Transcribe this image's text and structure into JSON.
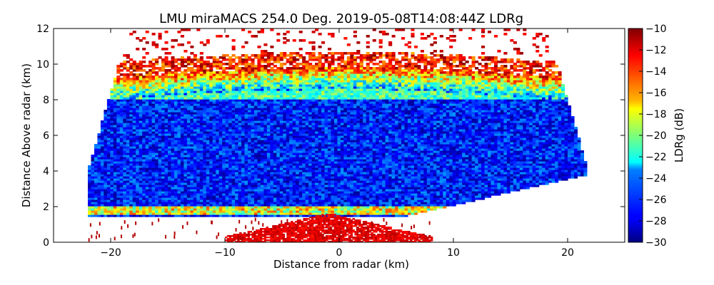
{
  "chart_data": {
    "type": "heatmap",
    "title": "LMU miraMACS 254.0 Deg. 2019-05-08T14:08:44Z  LDRg",
    "xlabel": "Distance from radar (km)",
    "ylabel": "Distance Above radar  (km)",
    "xlim": [
      -25,
      25
    ],
    "ylim": [
      0,
      12
    ],
    "x_ticks": [
      -20,
      -10,
      0,
      10,
      20
    ],
    "y_ticks": [
      0,
      2,
      4,
      6,
      8,
      10,
      12
    ],
    "x_tick_labels": [
      "−20",
      "−10",
      "0",
      "10",
      "20"
    ],
    "y_tick_labels": [
      "0",
      "2",
      "4",
      "6",
      "8",
      "10",
      "12"
    ],
    "colorbar": {
      "label": "LDRg (dB)",
      "range": [
        -30,
        -10
      ],
      "colormap": "jet",
      "ticks": [
        -10,
        -12,
        -14,
        -16,
        -18,
        -20,
        -22,
        -24,
        -26,
        -28,
        -30
      ],
      "tick_labels": [
        "−10",
        "−12",
        "−14",
        "−16",
        "−18",
        "−20",
        "−22",
        "−24",
        "−26",
        "−28",
        "−30"
      ]
    },
    "scan": {
      "left_edge_x_km": -22,
      "right_edge_x_km": 21.8,
      "layers": [
        {
          "name": "melting-layer",
          "height_km": [
            1.6,
            2.0
          ],
          "ldr_db": -18
        },
        {
          "name": "ice-cloud-core",
          "height_km": [
            2.0,
            8.0
          ],
          "ldr_db": -27
        },
        {
          "name": "cloud-top-transition",
          "height_km": [
            8.0,
            9.3
          ],
          "ldr_db": -21
        },
        {
          "name": "cloud-top-noise",
          "height_km": [
            9.3,
            12.0
          ],
          "ldr_db": -11
        }
      ],
      "near_ground_clutter": {
        "x_km": [
          -10,
          8
        ],
        "height_km": [
          0,
          1.6
        ],
        "ldr_db": -11
      }
    }
  }
}
